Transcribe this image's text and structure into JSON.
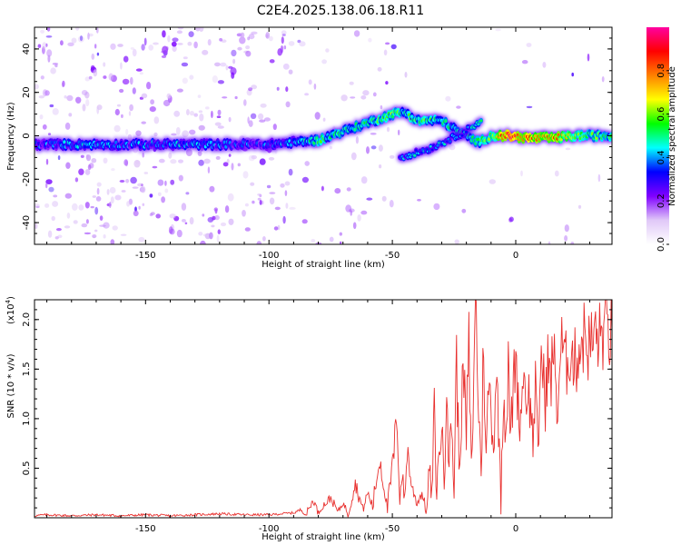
{
  "title": "C2E4.2025.138.06.18.R11",
  "chart_data": [
    {
      "type": "heatmap",
      "xlabel": "Height of straight line (km)",
      "ylabel": "Frequency (Hz)",
      "xlim": [
        -195,
        39
      ],
      "ylim": [
        -50,
        50
      ],
      "xticks": [
        -150,
        -100,
        -50,
        0
      ],
      "xtick_labels": [
        "-150",
        "-100",
        "-50",
        "0"
      ],
      "yticks": [
        -40,
        -20,
        0,
        20,
        40
      ],
      "ytick_labels": [
        "-40",
        "-20",
        "0",
        "20",
        "40"
      ],
      "colorbar": {
        "label": "Normalized spectral amplitude",
        "range": [
          0.0,
          1.0
        ],
        "ticks": [
          0.0,
          0.2,
          0.4,
          0.6,
          0.8
        ],
        "tick_labels": [
          "0.0",
          "0.2",
          "0.4",
          "0.6",
          "0.8"
        ],
        "colormap": [
          "#ffffff",
          "#e0c8f8",
          "#8000ff",
          "#0000ff",
          "#00ffff",
          "#00ff00",
          "#ffff00",
          "#ff8000",
          "#ff0000",
          "#ff00a0"
        ]
      },
      "ridge": [
        {
          "x": -195,
          "freq": -4,
          "amp": 0.35
        },
        {
          "x": -175,
          "freq": -4,
          "amp": 0.4
        },
        {
          "x": -160,
          "freq": -4,
          "amp": 0.35
        },
        {
          "x": -140,
          "freq": -4,
          "amp": 0.4
        },
        {
          "x": -120,
          "freq": -4,
          "amp": 0.35
        },
        {
          "x": -100,
          "freq": -4,
          "amp": 0.35
        },
        {
          "x": -90,
          "freq": -3,
          "amp": 0.4
        },
        {
          "x": -80,
          "freq": -2,
          "amp": 0.5
        },
        {
          "x": -70,
          "freq": 2,
          "amp": 0.5
        },
        {
          "x": -60,
          "freq": 6,
          "amp": 0.5
        },
        {
          "x": -50,
          "freq": 10,
          "amp": 0.55
        },
        {
          "x": -45,
          "freq": 11,
          "amp": 0.5
        },
        {
          "x": -40,
          "freq": 7,
          "amp": 0.55
        },
        {
          "x": -30,
          "freq": 7,
          "amp": 0.5
        },
        {
          "x": -22,
          "freq": 1,
          "amp": 0.45
        },
        {
          "x": -15,
          "freq": -3,
          "amp": 0.5
        },
        {
          "x": -10,
          "freq": 0,
          "amp": 0.6
        },
        {
          "x": -3,
          "freq": 0,
          "amp": 0.95
        },
        {
          "x": 5,
          "freq": -1,
          "amp": 0.8
        },
        {
          "x": 15,
          "freq": -1,
          "amp": 0.8
        },
        {
          "x": 25,
          "freq": 0,
          "amp": 0.6
        },
        {
          "x": 39,
          "freq": 0,
          "amp": 0.5
        }
      ],
      "branch": [
        {
          "x": -47,
          "freq": -10,
          "amp": 0.4
        },
        {
          "x": -35,
          "freq": -6,
          "amp": 0.4
        },
        {
          "x": -22,
          "freq": 1,
          "amp": 0.4
        },
        {
          "x": -14,
          "freq": 7,
          "amp": 0.45
        }
      ]
    },
    {
      "type": "line",
      "xlabel": "Height of straight line (km)",
      "ylabel": "SNR (10 * v/v)",
      "y_multiplier": "(x10",
      "y_multiplier_exp": "4",
      "y_multiplier_close": ")",
      "xlim": [
        -195,
        39
      ],
      "ylim": [
        0,
        2.2
      ],
      "xticks": [
        -150,
        -100,
        -50,
        0
      ],
      "xtick_labels": [
        "-150",
        "-100",
        "-50",
        "0"
      ],
      "yticks": [
        0.5,
        1.0,
        1.5,
        2.0
      ],
      "ytick_labels": [
        "0.5",
        "1.0",
        "1.5",
        "2.0"
      ],
      "color": "#e8302e",
      "series": [
        {
          "x": [
            -195,
            -190,
            -180,
            -170,
            -160,
            -150,
            -140,
            -130,
            -120,
            -110,
            -100,
            -95,
            -90,
            -87,
            -85,
            -82,
            -80,
            -78,
            -75,
            -72,
            -70,
            -68,
            -65,
            -62,
            -60,
            -58,
            -56,
            -55,
            -53,
            -52,
            -50,
            -48,
            -47,
            -46,
            -45,
            -44,
            -42,
            -40,
            -38,
            -36,
            -35,
            -34,
            -33,
            -32,
            -31,
            -30,
            -29,
            -28,
            -27,
            -26,
            -25,
            -24,
            -23,
            -22,
            -21,
            -20,
            -19,
            -18,
            -17,
            -16,
            -15,
            -14,
            -13,
            -12,
            -11,
            -10,
            -9,
            -8,
            -7,
            -6,
            -5,
            -4,
            -3,
            -2,
            -1,
            0,
            1,
            2,
            3,
            4,
            5,
            6,
            7,
            8,
            9,
            10,
            11,
            12,
            13,
            14,
            15,
            16,
            17,
            18,
            19,
            20,
            22,
            24,
            26,
            28,
            30,
            32,
            34,
            36,
            38,
            39
          ],
          "y": [
            0.02,
            0.03,
            0.02,
            0.03,
            0.02,
            0.03,
            0.02,
            0.03,
            0.04,
            0.03,
            0.03,
            0.04,
            0.05,
            0.08,
            0.03,
            0.18,
            0.05,
            0.12,
            0.2,
            0.06,
            0.15,
            0.05,
            0.35,
            0.08,
            0.25,
            0.12,
            0.45,
            0.6,
            0.25,
            0.1,
            0.5,
            1.0,
            0.2,
            0.45,
            0.15,
            0.7,
            0.3,
            0.15,
            0.25,
            0.05,
            0.55,
            0.15,
            1.1,
            0.25,
            0.7,
            0.9,
            0.4,
            1.55,
            0.5,
            1.0,
            0.3,
            1.65,
            0.45,
            1.1,
            1.45,
            0.8,
            1.75,
            0.35,
            1.5,
            2.2,
            1.0,
            0.6,
            1.8,
            0.5,
            1.4,
            1.1,
            0.7,
            1.5,
            0.9,
            0.3,
            1.3,
            0.85,
            1.5,
            0.8,
            1.3,
            1.7,
            1.15,
            0.95,
            1.55,
            1.2,
            1.3,
            1.1,
            0.8,
            1.35,
            0.5,
            1.65,
            1.45,
            1.2,
            1.6,
            1.3,
            1.7,
            1.45,
            1.05,
            1.65,
            1.75,
            1.5,
            1.7,
            1.55,
            1.75,
            1.85,
            1.7,
            1.85,
            1.8,
            1.9,
            1.85,
            1.88
          ]
        }
      ]
    }
  ]
}
